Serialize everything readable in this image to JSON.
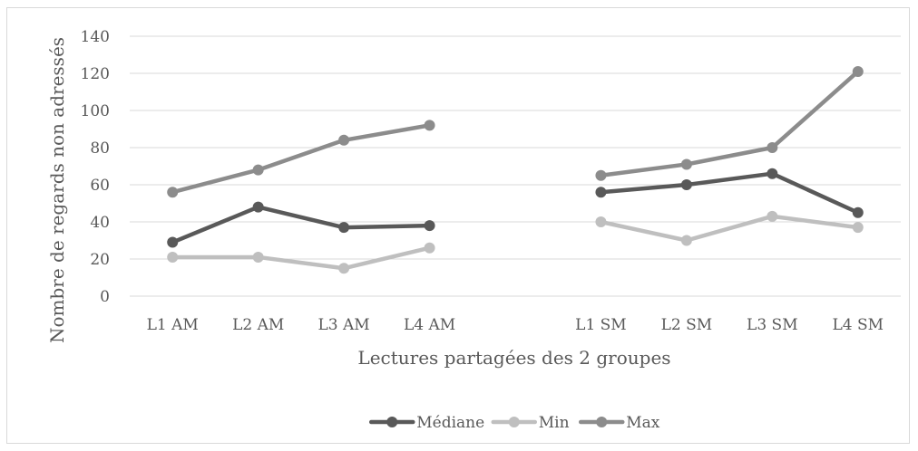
{
  "chart_data": {
    "type": "line",
    "title": "",
    "xlabel": "Lectures partagées des 2 groupes",
    "ylabel": "Nombre de regards non adressés",
    "ylim": [
      0,
      140
    ],
    "yticks": [
      0,
      20,
      40,
      60,
      80,
      100,
      120,
      140
    ],
    "grid": true,
    "legend_position": "bottom",
    "categories": [
      "L1 AM",
      "L2 AM",
      "L3 AM",
      "L4 AM",
      "",
      "L1 SM",
      "L2 SM",
      "L3 SM",
      "L4 SM"
    ],
    "series": [
      {
        "name": "Médiane",
        "color": "#595959",
        "values": [
          29,
          48,
          37,
          38,
          null,
          56,
          60,
          66,
          45
        ]
      },
      {
        "name": "Min",
        "color": "#bfbfbf",
        "values": [
          21,
          21,
          15,
          26,
          null,
          40,
          30,
          43,
          37
        ]
      },
      {
        "name": "Max",
        "color": "#8c8c8c",
        "values": [
          56,
          68,
          84,
          92,
          null,
          65,
          71,
          80,
          121
        ]
      }
    ]
  }
}
